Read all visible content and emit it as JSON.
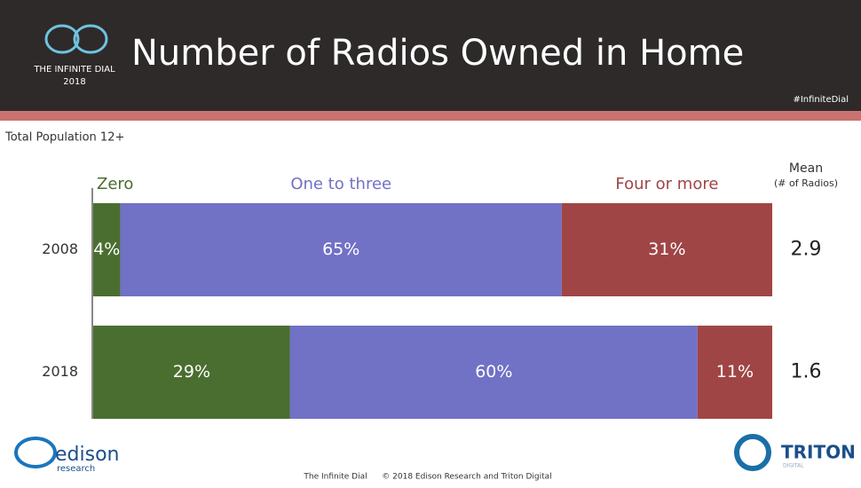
{
  "header": {
    "brand": "THE INFINITE DIAL",
    "year": "2018",
    "hashtag": "#InfiniteDial"
  },
  "chart_data": {
    "type": "stacked-barh",
    "title": "Number of Radios Owned in Home",
    "subtitle": "Total Population 12+",
    "categories": [
      "2008",
      "2018"
    ],
    "xlim": [
      0,
      100
    ],
    "series": [
      {
        "name": "Zero",
        "color": "#4a6e2f",
        "values": [
          4,
          29
        ],
        "value_labels": [
          "4%",
          "29%"
        ]
      },
      {
        "name": "One to three",
        "color": "#7171c6",
        "values": [
          65,
          60
        ],
        "value_labels": [
          "65%",
          "60%"
        ]
      },
      {
        "name": "Four or more",
        "color": "#a04545",
        "values": [
          31,
          11
        ],
        "value_labels": [
          "31%",
          "11%"
        ]
      }
    ]
  },
  "mean": {
    "title": "Mean",
    "subtitle": "(# of Radios)",
    "values": [
      2.9,
      1.6
    ]
  },
  "footer": {
    "left": "The Infinite Dial",
    "right": "© 2018 Edison Research and Triton Digital",
    "edison": "edison",
    "research": "research",
    "triton": "TRITON",
    "digital": "DIGITAL"
  }
}
